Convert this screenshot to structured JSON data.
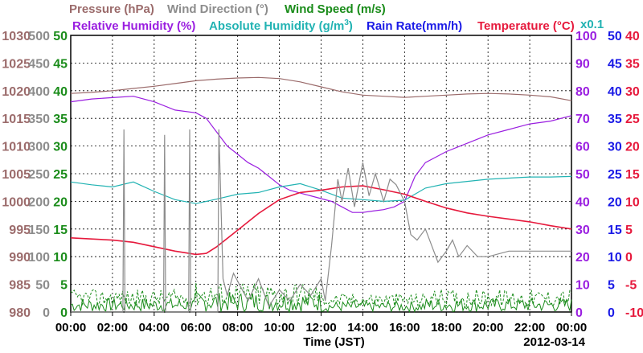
{
  "chart_data": {
    "type": "line",
    "date": "2012-03-14",
    "xlabel": "Time (JST)",
    "x_ticks": [
      "00:00",
      "02:00",
      "04:00",
      "06:00",
      "08:00",
      "10:00",
      "12:00",
      "14:00",
      "16:00",
      "18:00",
      "20:00",
      "22:00",
      "00:00"
    ],
    "xlim": [
      0,
      24
    ],
    "grid": true,
    "legend": [
      {
        "text": "Pressure (hPa)",
        "color": "#9b6b6b"
      },
      {
        "text": "Wind Direction (°)",
        "color": "#8c8c8c"
      },
      {
        "text": "Wind Speed (m/s)",
        "color": "#1a8c1a"
      },
      {
        "text": "Relative Humidity (%)",
        "color": "#9a1ee0"
      },
      {
        "text": "Absolute Humidity (g/m",
        "sup": "3",
        "close": ")",
        "color": "#22b3b3"
      },
      {
        "text": "Rain Rate(mm/h)",
        "color": "#1a1ae6"
      },
      {
        "text": "Temperature (°C)",
        "color": "#e6193c"
      }
    ],
    "axis_note": "x0.1",
    "axes": {
      "pressure": {
        "color": "#9b6b6b",
        "ylim": [
          980,
          1030
        ],
        "ticks": [
          "980",
          "985",
          "990",
          "995",
          "1000",
          "1005",
          "1010",
          "1015",
          "1020",
          "1025",
          "1030"
        ]
      },
      "wind_direction": {
        "color": "#8c8c8c",
        "ylim": [
          0,
          500
        ],
        "ticks": [
          "0",
          "50",
          "100",
          "150",
          "200",
          "250",
          "300",
          "350",
          "400",
          "450",
          "500"
        ]
      },
      "wind_speed": {
        "color": "#1a8c1a",
        "ylim": [
          0,
          50
        ],
        "ticks": [
          "0",
          "5",
          "10",
          "15",
          "20",
          "25",
          "30",
          "35",
          "40",
          "45",
          "50"
        ]
      },
      "relative_humidity": {
        "color": "#9a1ee0",
        "ylim": [
          0,
          100
        ],
        "ticks": [
          "0",
          "10",
          "20",
          "30",
          "40",
          "50",
          "60",
          "70",
          "80",
          "90",
          "100"
        ]
      },
      "rain_rate": {
        "color": "#1a1ae6",
        "ylim": [
          0,
          50
        ],
        "ticks": [
          "0",
          "5",
          "10",
          "15",
          "20",
          "25",
          "30",
          "35",
          "40",
          "45",
          "50"
        ]
      },
      "temperature": {
        "color": "#e6193c",
        "ylim": [
          -10,
          40
        ],
        "ticks": [
          "-10",
          "-5",
          "0",
          "5",
          "10",
          "15",
          "20",
          "25",
          "30",
          "35",
          "40"
        ]
      }
    },
    "series": [
      {
        "name": "Pressure (hPa)",
        "axis": "pressure",
        "color": "#9b6b6b",
        "x": [
          0,
          1,
          2,
          3,
          4,
          5,
          6,
          7,
          8,
          9,
          10,
          11,
          12,
          13,
          14,
          15,
          16,
          17,
          18,
          19,
          20,
          21,
          22,
          23,
          24
        ],
        "y": [
          1019.5,
          1019.7,
          1020,
          1020.4,
          1020.8,
          1021.3,
          1021.8,
          1022.1,
          1022.3,
          1022.4,
          1022.2,
          1021.6,
          1020.7,
          1019.8,
          1019.2,
          1019,
          1018.8,
          1019,
          1019.2,
          1019.4,
          1019.5,
          1019.4,
          1019.2,
          1018.9,
          1018.2
        ]
      },
      {
        "name": "Relative Humidity (%)",
        "axis": "relative_humidity",
        "color": "#9a1ee0",
        "x": [
          0,
          1,
          2,
          3,
          4,
          5,
          6,
          6.5,
          7,
          7.5,
          8,
          8.5,
          9,
          9.5,
          10,
          10.5,
          11,
          11.5,
          12,
          12.5,
          13,
          13.5,
          14,
          14.5,
          15,
          15.5,
          16,
          16.5,
          17,
          17.5,
          18,
          19,
          20,
          21,
          22,
          23,
          24
        ],
        "y": [
          76,
          77,
          77.5,
          78,
          76,
          73,
          72,
          70,
          65,
          60,
          57,
          54,
          52,
          49,
          46,
          44,
          43,
          42,
          41,
          40,
          38,
          36,
          36,
          36.5,
          37,
          38,
          40,
          49,
          54,
          56,
          58,
          61,
          64,
          66,
          68,
          69,
          71
        ]
      },
      {
        "name": "Absolute Humidity (g/m3)",
        "axis": "wind_speed",
        "color": "#22b3b3",
        "x": [
          0,
          1,
          2,
          3,
          4,
          5,
          6,
          7,
          8,
          9,
          10,
          11,
          12,
          13,
          14,
          15,
          16,
          17,
          18,
          19,
          20,
          21,
          22,
          23,
          24
        ],
        "y": [
          23.5,
          23,
          22.6,
          23.5,
          21.8,
          20.3,
          19.6,
          20.4,
          21.3,
          21.6,
          22.6,
          23.2,
          22,
          20.6,
          20.3,
          20,
          20.2,
          22.4,
          23.2,
          23.6,
          24,
          24.2,
          24.4,
          24.4,
          24.5
        ]
      },
      {
        "name": "Temperature (°C)",
        "axis": "temperature",
        "color": "#e6193c",
        "x": [
          0,
          1,
          2,
          3,
          4,
          5,
          6,
          6.5,
          7,
          8,
          9,
          10,
          11,
          12,
          13,
          14,
          15,
          16,
          17,
          18,
          19,
          20,
          21,
          22,
          23,
          24
        ],
        "y": [
          3.4,
          3.2,
          3,
          2.6,
          1.8,
          1,
          0.4,
          0.6,
          1.8,
          4.8,
          7.8,
          10.3,
          11.6,
          12,
          12.6,
          12.8,
          12.1,
          11.3,
          10,
          8.8,
          7.9,
          7.3,
          6.8,
          6.3,
          5.6,
          5
        ]
      },
      {
        "name": "Wind Direction (°)",
        "axis": "wind_direction",
        "color": "#8c8c8c",
        "x": [
          0,
          2.5,
          2.55,
          2.6,
          2.65,
          2.7,
          4.4,
          4.45,
          4.5,
          4.55,
          4.6,
          5.6,
          5.65,
          5.7,
          5.75,
          5.8,
          7.0,
          7.05,
          7.1,
          7.3,
          7.5,
          7.8,
          8.5,
          9,
          9.5,
          10,
          10.5,
          11,
          11.5,
          12,
          12.2,
          12.5,
          12.8,
          13,
          13.3,
          13.6,
          14,
          14.3,
          14.6,
          15,
          15.3,
          15.6,
          16,
          16.3,
          16.6,
          17,
          17.3,
          17.6,
          18,
          18.3,
          18.6,
          19,
          19.5,
          20,
          21,
          22,
          23,
          24
        ],
        "y": [
          0,
          0,
          330,
          0,
          0,
          0,
          0,
          0,
          320,
          0,
          0,
          0,
          0,
          330,
          0,
          0,
          0,
          0,
          330,
          60,
          30,
          70,
          20,
          60,
          10,
          40,
          20,
          50,
          30,
          60,
          20,
          120,
          240,
          200,
          260,
          190,
          270,
          210,
          250,
          200,
          240,
          230,
          200,
          140,
          130,
          150,
          120,
          90,
          110,
          130,
          100,
          120,
          100,
          100,
          110,
          110,
          110,
          110
        ]
      }
    ]
  }
}
